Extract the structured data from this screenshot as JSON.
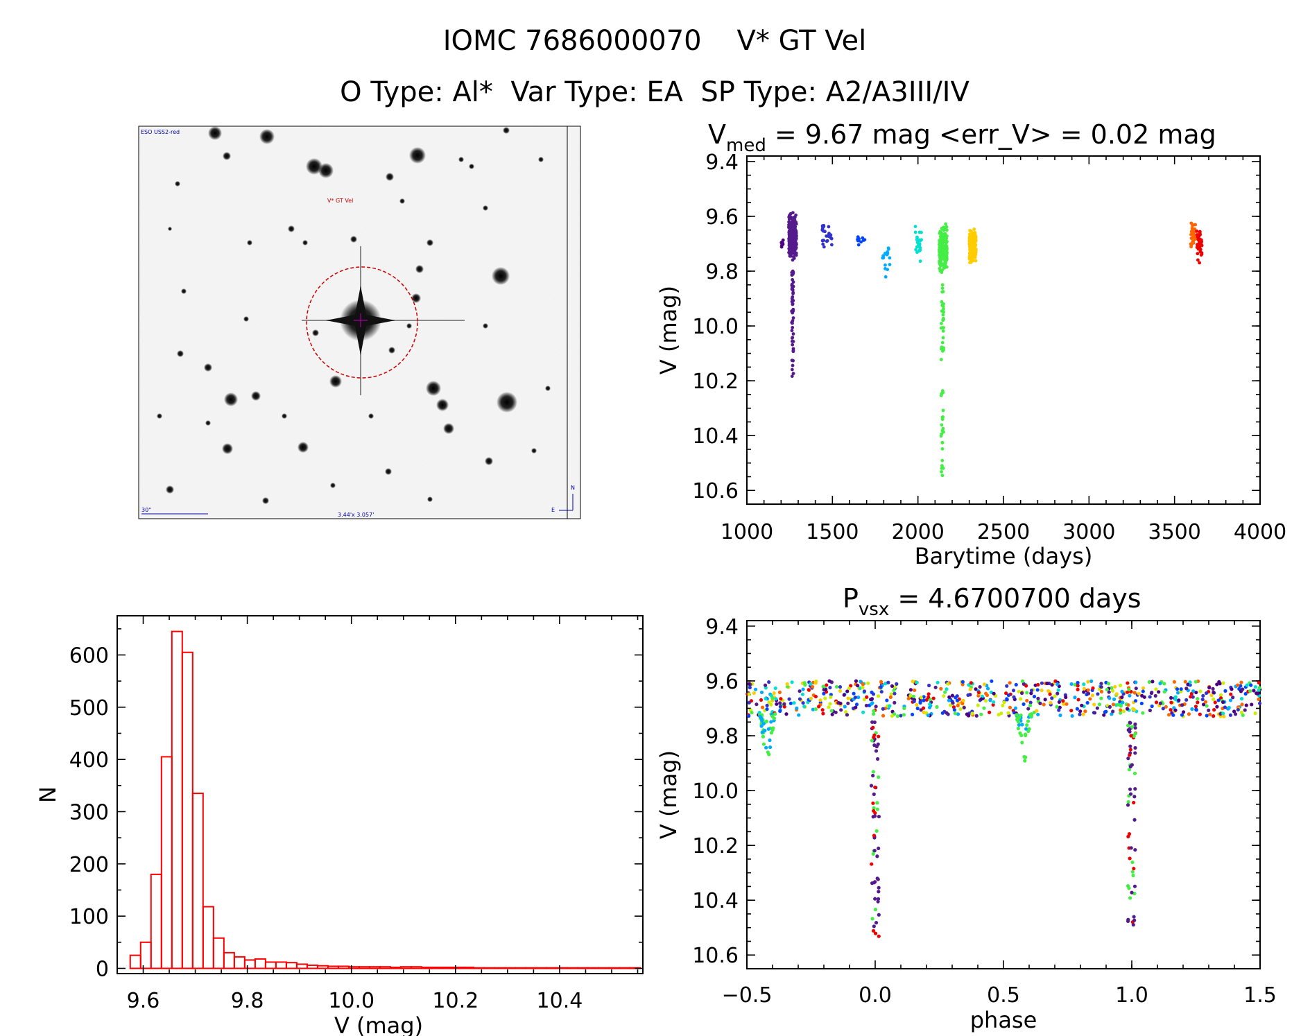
{
  "header": {
    "line1": "IOMC 7686000070    V* GT Vel",
    "line2": "O Type: Al*  Var Type: EA  SP Type: A2/A3III/IV"
  },
  "thumbnail": {
    "survey_label": "ESO USS2-red",
    "object_label": "V* GT Vel",
    "scale_label": "30\"",
    "size_label": "3.44'x 3.057'",
    "compass_north": "N",
    "compass_east": "E"
  },
  "colors": {
    "histogram": "#ff0000",
    "aperture": "#cc0000",
    "season_palette": [
      "#4b0082",
      "#551a8b",
      "#3333cc",
      "#0044ff",
      "#00aaff",
      "#00e0d0",
      "#44ee44",
      "#ccee00",
      "#ffcc00",
      "#ff6600",
      "#ee0000"
    ]
  },
  "chart_data": [
    {
      "id": "light_curve",
      "type": "scatter",
      "title": "V_med = 9.67 mag <err_V> = 0.02 mag",
      "title_parts": {
        "V": "V",
        "sub": "med",
        "rest": " = 9.67 mag <err_V> = 0.02 mag"
      },
      "xlabel": "Barytime (days)",
      "ylabel": "V (mag)",
      "xlim": [
        1000,
        4000
      ],
      "ylim": [
        10.65,
        9.38
      ],
      "y_inverted": true,
      "xticks": [
        "1000",
        "1500",
        "2000",
        "2500",
        "3000",
        "3500",
        "4000"
      ],
      "yticks": [
        "9.4",
        "9.6",
        "9.8",
        "10.0",
        "10.2",
        "10.4",
        "10.6"
      ],
      "seasons": [
        {
          "x": [
            1200,
            1215
          ],
          "y": [
            9.67,
            9.72
          ],
          "color": "#4b0082",
          "n": 8
        },
        {
          "x": [
            1245,
            1290
          ],
          "y": [
            9.57,
            9.78
          ],
          "color": "#551a8b",
          "n": 260,
          "dip": [
            1262,
            1272,
            9.8,
            10.21
          ]
        },
        {
          "x": [
            1440,
            1500
          ],
          "y": [
            9.6,
            9.75
          ],
          "color": "#3333cc",
          "n": 24
        },
        {
          "x": [
            1640,
            1690
          ],
          "y": [
            9.65,
            9.71
          ],
          "color": "#0044ff",
          "n": 10
        },
        {
          "x": [
            1790,
            1835
          ],
          "y": [
            9.66,
            9.87
          ],
          "color": "#00aaff",
          "n": 16
        },
        {
          "x": [
            1985,
            2020
          ],
          "y": [
            9.61,
            9.78
          ],
          "color": "#00e0d0",
          "n": 24
        },
        {
          "x": [
            2125,
            2170
          ],
          "y": [
            9.61,
            9.83
          ],
          "color": "#44ee44",
          "n": 220,
          "dip": [
            2135,
            2150,
            9.85,
            10.55
          ]
        },
        {
          "x": [
            2300,
            2340
          ],
          "y": [
            9.62,
            9.79
          ],
          "color": "#ffcc00",
          "n": 200
        },
        {
          "x": [
            3595,
            3625
          ],
          "y": [
            9.59,
            9.74
          ],
          "color": "#ff6600",
          "n": 30
        },
        {
          "x": [
            3630,
            3660
          ],
          "y": [
            9.62,
            9.78
          ],
          "color": "#ee0000",
          "n": 40
        }
      ]
    },
    {
      "id": "histogram",
      "type": "bar",
      "title": "",
      "xlabel": "V (mag)",
      "ylabel": "N",
      "xlim": [
        9.55,
        10.56
      ],
      "ylim": [
        -10,
        675
      ],
      "xticks": [
        "9.6",
        "9.8",
        "10.0",
        "10.2",
        "10.4"
      ],
      "xtick_values": [
        9.6,
        9.8,
        10.0,
        10.2,
        10.4
      ],
      "yticks": [
        "0",
        "100",
        "200",
        "300",
        "400",
        "500",
        "600"
      ],
      "ytick_values": [
        0,
        100,
        200,
        300,
        400,
        500,
        600
      ],
      "bin_start": 9.575,
      "bin_width": 0.02,
      "values": [
        25,
        50,
        180,
        405,
        645,
        605,
        335,
        118,
        58,
        30,
        22,
        16,
        18,
        12,
        12,
        11,
        8,
        6,
        5,
        4,
        4,
        3,
        3,
        3,
        3,
        2,
        3,
        3,
        2,
        2,
        2,
        2,
        2,
        1,
        1,
        1,
        1,
        1,
        1,
        1,
        1,
        1,
        1,
        1,
        1,
        1,
        1,
        1,
        1
      ]
    },
    {
      "id": "phased_curve",
      "type": "scatter",
      "title": "P_vsx = 4.6700700 days",
      "title_parts": {
        "P": "P",
        "sub": "vsx",
        "rest": " = 4.6700700 days"
      },
      "xlabel": "phase",
      "ylabel": "V (mag)",
      "xlim": [
        -0.5,
        1.5
      ],
      "ylim": [
        10.65,
        9.38
      ],
      "y_inverted": true,
      "xticks": [
        "−0.5",
        "0.0",
        "0.5",
        "1.0",
        "1.5"
      ],
      "xtick_values": [
        -0.5,
        0.0,
        0.5,
        1.0,
        1.5
      ],
      "yticks": [
        "9.4",
        "9.6",
        "9.8",
        "10.0",
        "10.2",
        "10.4",
        "10.6"
      ],
      "baseline": [
        9.6,
        9.73
      ],
      "primary_eclipse": {
        "phase": 0.0,
        "depth": 10.55
      },
      "secondary_eclipse": {
        "phase": 0.58,
        "depth": 9.93
      }
    }
  ]
}
